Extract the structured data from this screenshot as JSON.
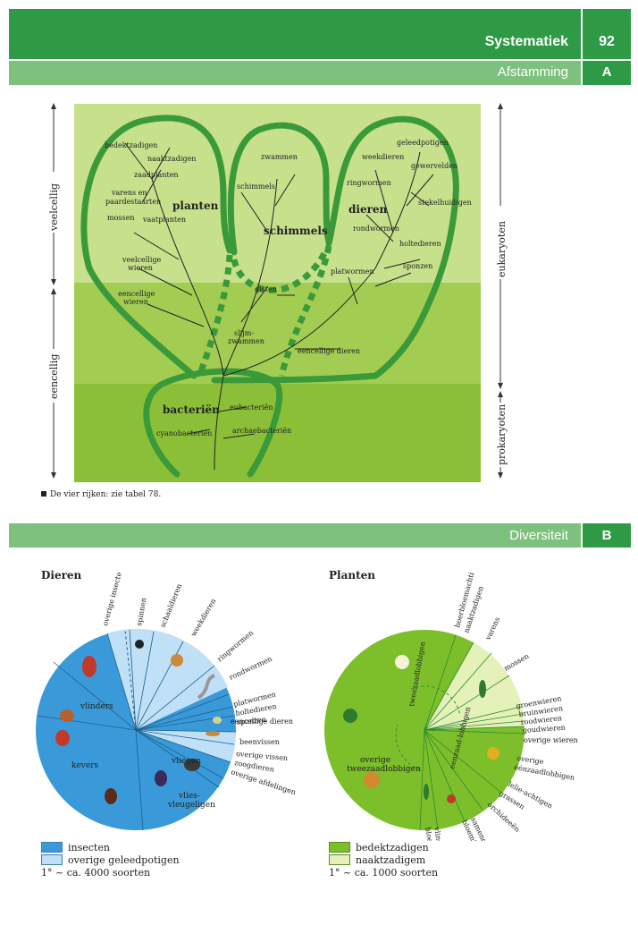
{
  "header": {
    "title": "Systematiek",
    "page_number": "92"
  },
  "section_a": {
    "title": "Afstamming",
    "letter": "A"
  },
  "section_b": {
    "title": "Diversiteit",
    "letter": "B"
  },
  "tree": {
    "axis_left": [
      "veelcellig",
      "eencellig"
    ],
    "axis_right": [
      "eukaryoten",
      "prokaryoten"
    ],
    "kingdoms": [
      "planten",
      "schimmels",
      "dieren",
      "bacteriën"
    ],
    "plant_labels": [
      "bedektzadigen",
      "naaktzadigen",
      "zaadplanten",
      "varens en paardestaarten",
      "mossen",
      "vaatplanten",
      "veelcellige wieren",
      "eencellige wieren"
    ],
    "fungi_labels": [
      "zwammen",
      "schimmels",
      "gisten",
      "slijm-zwammen"
    ],
    "animal_labels": [
      "geleedpotigen",
      "weekdieren",
      "gewervelden",
      "ringwormen",
      "stekelhuidigen",
      "rondwormen",
      "holtedieren",
      "sponzen",
      "platwormen",
      "eencellige dieren"
    ],
    "bacteria_labels": [
      "eubacteriën",
      "archaebacteriën",
      "cyanobacteriën"
    ],
    "caption": "De vier rijken: zie tabel 78."
  },
  "pie_animals": {
    "title": "Dieren",
    "inner_labels": [
      "vlinders",
      "kevers",
      "vliegen",
      "vlies-vleugeligen"
    ],
    "outer_labels": [
      "overige insecten",
      "spinnen",
      "schaaldieren",
      "weekdieren",
      "ringwormen",
      "rondwormen",
      "platwormen",
      "holtedieren",
      "sponzen",
      "eencellige dieren",
      "beenvissen",
      "overige vissen",
      "zoogdieren",
      "overige afdelingen"
    ],
    "legend": [
      "insecten",
      "overige geleedpotigen"
    ],
    "note": "1° ~ ca. 4000 soorten",
    "colors": {
      "insecten": "#3a9ad9",
      "overige": "#bfe0f7"
    }
  },
  "pie_plants": {
    "title": "Planten",
    "inner_labels": [
      "overige tweezaadlobbigen",
      "tweezaadlobbigen",
      "eenzaad-lobbigen"
    ],
    "outer_labels": [
      "boerbloemachtigen",
      "naaktzadigen",
      "varens",
      "mossen",
      "groenwieren",
      "bruinwieren",
      "roodwieren",
      "goudwieren",
      "overige wieren",
      "overige éénzaadlobbigen",
      "lelie-achtigen",
      "grassen",
      "orchideeën",
      "samengesteld-bloemigen",
      "vlinder-bloemigen"
    ],
    "legend": [
      "bedektzadigen",
      "naaktzadigem"
    ],
    "note": "1° ~ ca. 1000 soorten",
    "colors": {
      "bedekt": "#7cbf2a",
      "naakt": "#e4f1b8"
    }
  }
}
